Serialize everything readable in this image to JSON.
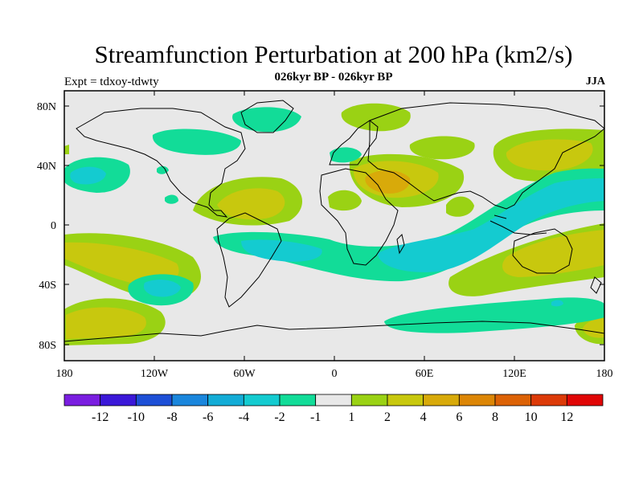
{
  "header": {
    "title": "Streamfunction Perturbation at 200 hPa (km2/s)",
    "subtitle": "026kyr BP - 026kyr BP",
    "expt": "Expt = tdxoy-tdwty",
    "season": "JJA"
  },
  "axes": {
    "lat_labels": [
      "80N",
      "40N",
      "0",
      "40S",
      "80S"
    ],
    "lon_labels": [
      "180",
      "120W",
      "60W",
      "0",
      "60E",
      "120E",
      "180"
    ]
  },
  "colorbar": {
    "colors": [
      "#7a1ee0",
      "#3b18d8",
      "#1d4fd6",
      "#1a86dc",
      "#13acd6",
      "#14cbd0",
      "#12dc98",
      "#e8e8e8",
      "#9ad214",
      "#c8c80e",
      "#d8aa0a",
      "#dc8606",
      "#dc6206",
      "#dc3a08",
      "#e00606"
    ],
    "labels": [
      "-12",
      "-10",
      "-8",
      "-6",
      "-4",
      "-2",
      "-1",
      "1",
      "2",
      "4",
      "6",
      "8",
      "10",
      "12"
    ]
  },
  "fill_colors": {
    "background": "#e8e8e8",
    "neg1": "#12dc98",
    "neg2": "#14cbd0",
    "pos1": "#9ad214",
    "pos2": "#c8c80e",
    "pos3": "#d8aa0a"
  }
}
